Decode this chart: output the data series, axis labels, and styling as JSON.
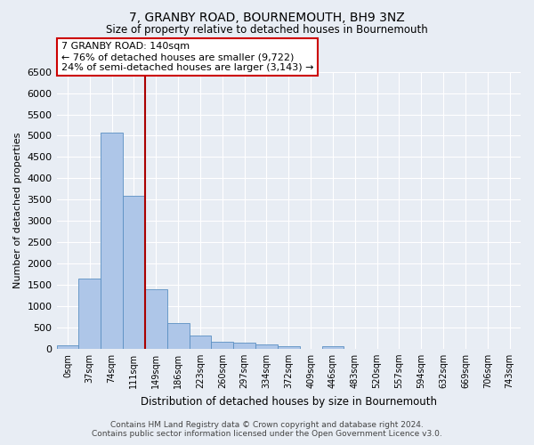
{
  "title": "7, GRANBY ROAD, BOURNEMOUTH, BH9 3NZ",
  "subtitle": "Size of property relative to detached houses in Bournemouth",
  "xlabel": "Distribution of detached houses by size in Bournemouth",
  "ylabel": "Number of detached properties",
  "footer_line1": "Contains HM Land Registry data © Crown copyright and database right 2024.",
  "footer_line2": "Contains public sector information licensed under the Open Government Licence v3.0.",
  "bar_labels": [
    "0sqm",
    "37sqm",
    "74sqm",
    "111sqm",
    "149sqm",
    "186sqm",
    "223sqm",
    "260sqm",
    "297sqm",
    "334sqm",
    "372sqm",
    "409sqm",
    "446sqm",
    "483sqm",
    "520sqm",
    "557sqm",
    "594sqm",
    "632sqm",
    "669sqm",
    "706sqm",
    "743sqm"
  ],
  "bar_values": [
    75,
    1650,
    5075,
    3600,
    1400,
    610,
    300,
    160,
    140,
    100,
    60,
    0,
    50,
    0,
    0,
    0,
    0,
    0,
    0,
    0,
    0
  ],
  "bar_color": "#aec6e8",
  "bar_edge_color": "#5a8fc2",
  "background_color": "#e8edf4",
  "grid_color": "#ffffff",
  "vline_color": "#aa0000",
  "annotation_text": "7 GRANBY ROAD: 140sqm\n← 76% of detached houses are smaller (9,722)\n24% of semi-detached houses are larger (3,143) →",
  "annotation_box_color": "#ffffff",
  "annotation_box_edge": "#cc0000",
  "ylim": [
    0,
    6500
  ],
  "yticks": [
    0,
    500,
    1000,
    1500,
    2000,
    2500,
    3000,
    3500,
    4000,
    4500,
    5000,
    5500,
    6000,
    6500
  ]
}
